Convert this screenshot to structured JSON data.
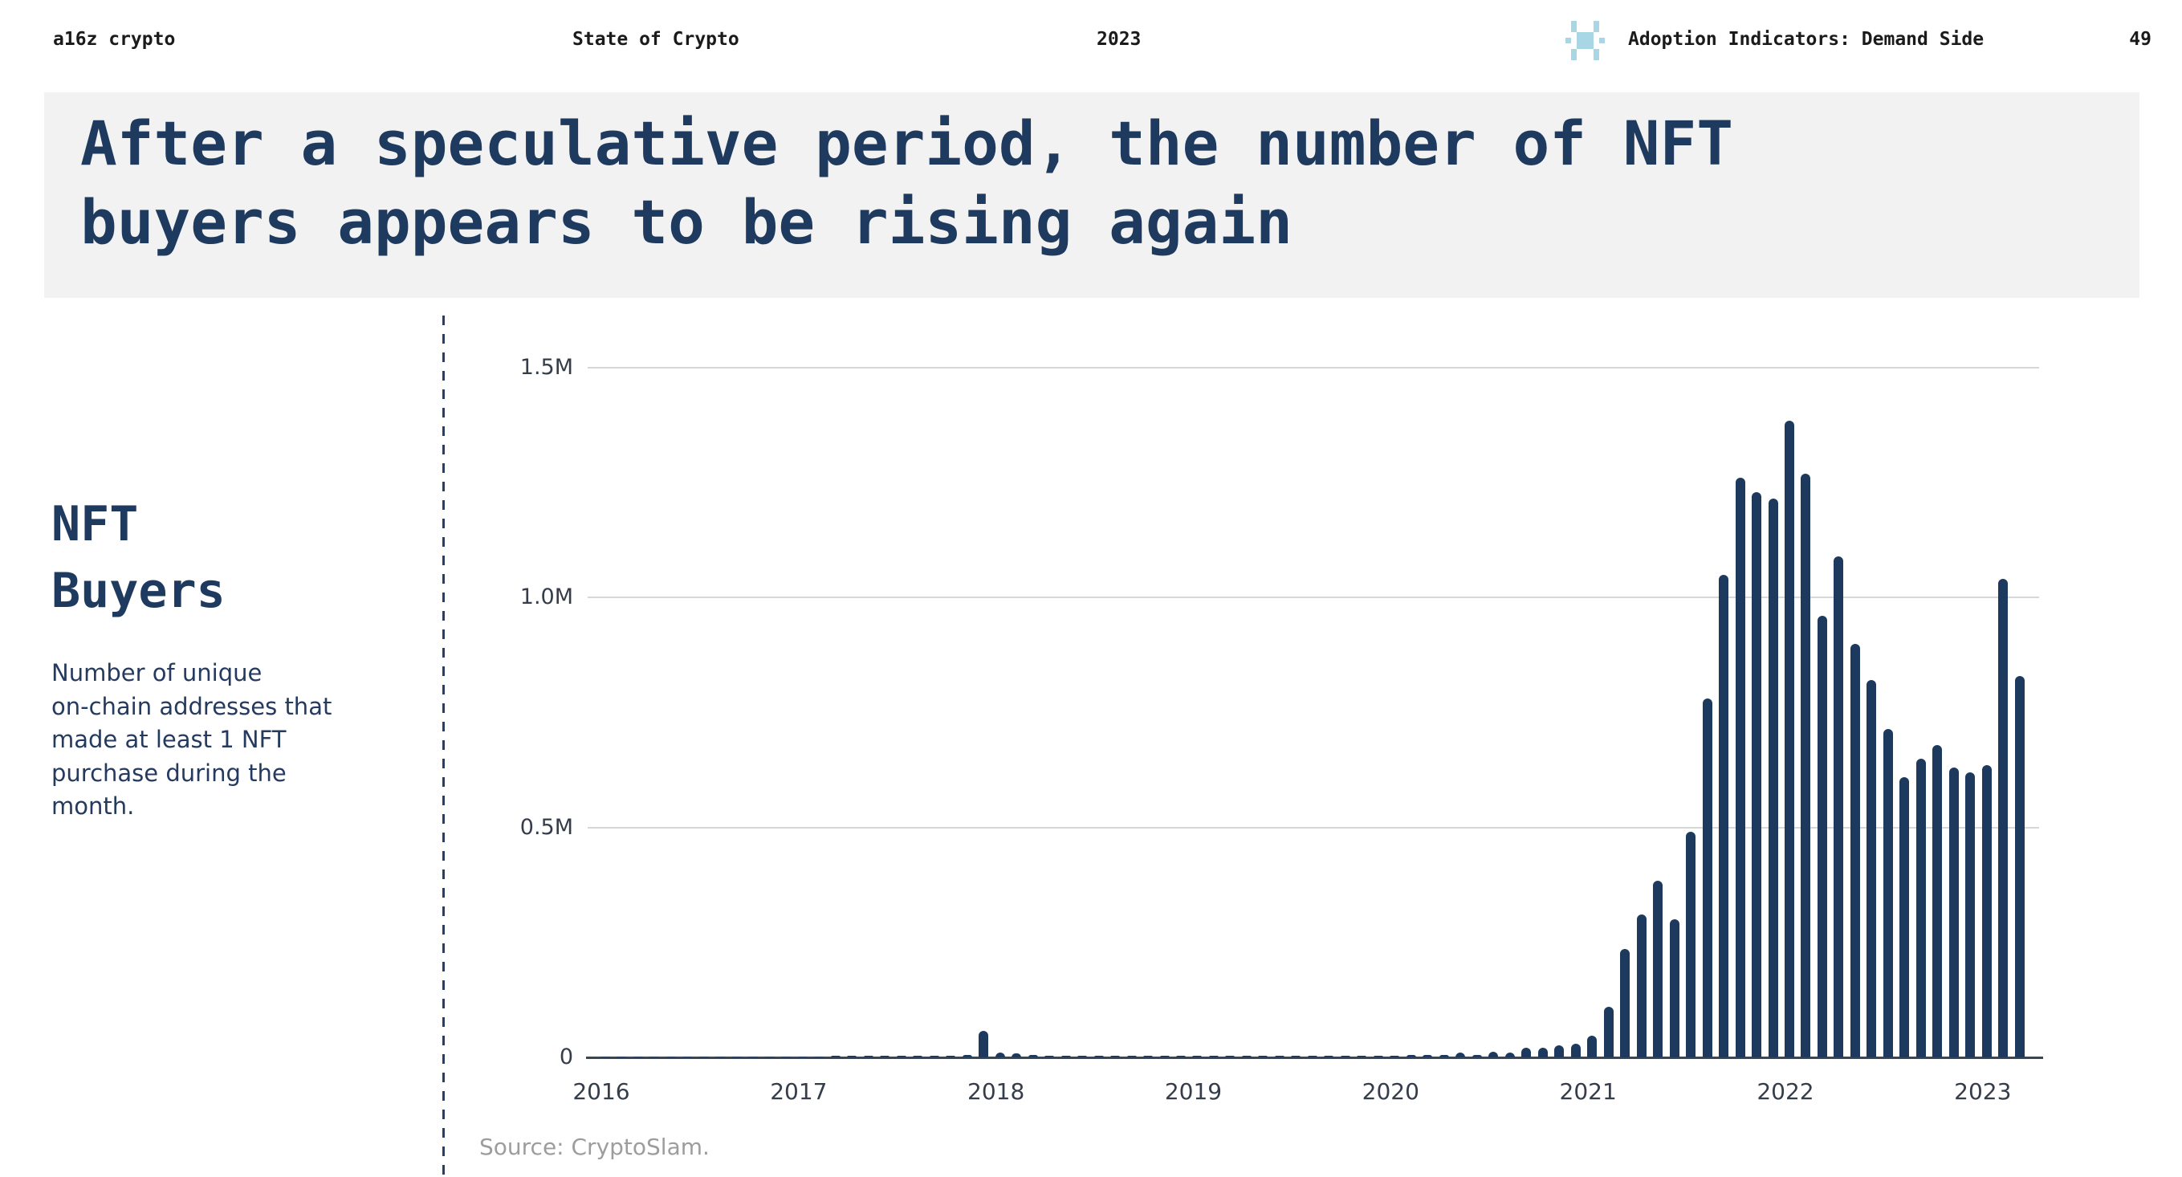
{
  "header": {
    "brand": "a16z crypto",
    "report_title": "State of Crypto",
    "year": "2023",
    "section": "Adoption Indicators: Demand Side",
    "page_number": "49",
    "logo_icon": "a16z-crypto-pixel-logo"
  },
  "slide_title": {
    "line1": "After a speculative period, the number of NFT",
    "line2": "buyers appears to be rising again"
  },
  "sidebar": {
    "heading_line1": "NFT",
    "heading_line2": "Buyers",
    "description": "Number of unique\non-chain addresses that\nmade at least 1 NFT\npurchase during the\nmonth."
  },
  "source_note": "Source: CryptoSlam.",
  "colors": {
    "bar": "#1d3a5e",
    "title_text": "#1e3a5f",
    "band_background": "#f2f2f2",
    "gridline": "#d7d7d7",
    "axis_line": "#3f454d",
    "axis_label": "#343d49",
    "logo_blue": "#a9d6e5",
    "source_text": "#9d9d9d"
  },
  "chart_data": {
    "type": "bar",
    "title": "NFT Buyers",
    "ylabel": "Unique on-chain addresses that made at least 1 NFT purchase during the month",
    "xlabel": "",
    "x_start_month": "2016-01",
    "x_end_month": "2023-03",
    "x_tick_labels": [
      "2016",
      "2017",
      "2018",
      "2019",
      "2020",
      "2021",
      "2022",
      "2023"
    ],
    "y_tick_labels": [
      "0",
      "0.5M",
      "1.0M",
      "1.5M"
    ],
    "y_tick_values_millions": [
      0,
      0.5,
      1.0,
      1.5
    ],
    "ylim_millions": [
      0,
      1.5
    ],
    "grid": "horizontal",
    "legend": "none",
    "values_millions": [
      0.002,
      0.002,
      0.002,
      0.002,
      0.002,
      0.002,
      0.002,
      0.002,
      0.002,
      0.002,
      0.002,
      0.002,
      0.002,
      0.002,
      0.003,
      0.003,
      0.003,
      0.003,
      0.003,
      0.003,
      0.004,
      0.004,
      0.006,
      0.057,
      0.01,
      0.008,
      0.005,
      0.004,
      0.004,
      0.003,
      0.004,
      0.003,
      0.003,
      0.003,
      0.004,
      0.004,
      0.004,
      0.003,
      0.004,
      0.003,
      0.004,
      0.004,
      0.003,
      0.004,
      0.003,
      0.004,
      0.004,
      0.004,
      0.004,
      0.005,
      0.005,
      0.006,
      0.01,
      0.006,
      0.012,
      0.01,
      0.021,
      0.021,
      0.026,
      0.03,
      0.047,
      0.11,
      0.235,
      0.31,
      0.385,
      0.3,
      0.49,
      0.78,
      1.05,
      1.26,
      1.23,
      1.215,
      1.385,
      1.27,
      0.96,
      1.09,
      0.9,
      0.82,
      0.715,
      0.61,
      0.65,
      0.68,
      0.63,
      0.62,
      0.635,
      1.04,
      0.83
    ]
  }
}
